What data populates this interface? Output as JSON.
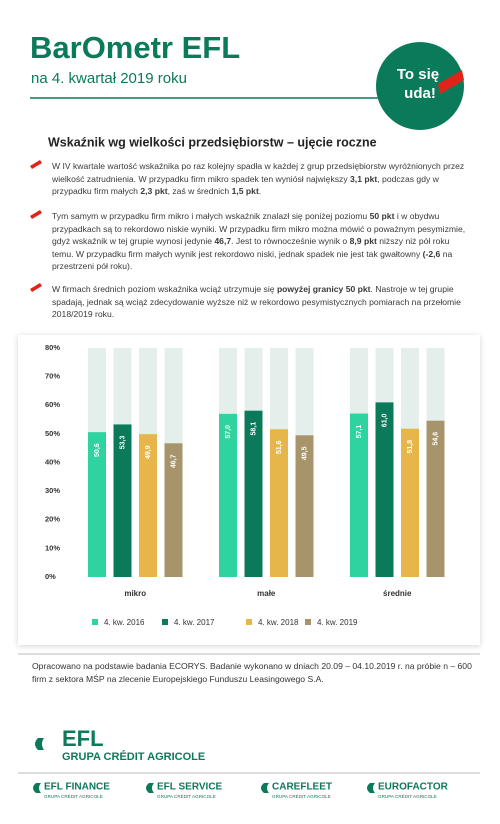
{
  "header": {
    "title": "BarOmetr EFL",
    "subtitle": "na 4. kwartał 2019 roku"
  },
  "badge": {
    "line1": "To się",
    "line2": "uda!"
  },
  "section_title": "Wskaźnik wg wielkości przedsiębiorstw – ujęcie roczne",
  "bullets": [
    [
      {
        "text": "W IV kwartale wartość wskaźnika po raz kolejny spadła w każdej z grup przedsiębiorstw wyróżnionych przez wielkość zatrudnienia. W przypadku firm mikro spadek ten wyniósł największy "
      },
      {
        "text": "3,1 pkt",
        "bold": true
      },
      {
        "text": ", podczas gdy w przypadku firm małych "
      },
      {
        "text": "2,3 pkt",
        "bold": true
      },
      {
        "text": ", zaś w średnich "
      },
      {
        "text": "1,5 pkt",
        "bold": true
      },
      {
        "text": "."
      }
    ],
    [
      {
        "text": "Tym samym w przypadku firm mikro i małych wskaźnik znalazł się poniżej poziomu "
      },
      {
        "text": "50 pkt",
        "bold": true
      },
      {
        "text": " i w obydwu przypadkach są to rekordowo niskie wyniki. W przypadku firm mikro można mówić o poważnym pesymizmie, gdyż wskaźnik w tej grupie wynosi jedynie "
      },
      {
        "text": "46,7",
        "bold": true
      },
      {
        "text": ". Jest to równocześnie wynik o "
      },
      {
        "text": "8,9 pkt",
        "bold": true
      },
      {
        "text": " niższy niż pół roku temu. W przypadku firm małych wynik jest rekordowo niski, jednak spadek nie jest tak gwałtowny "
      },
      {
        "text": "(-2,6",
        "bold": true
      },
      {
        "text": " na przestrzeni pół roku)."
      }
    ],
    [
      {
        "text": "W firmach średnich poziom wskaźnika wciąż utrzymuje się "
      },
      {
        "text": "powyżej granicy 50 pkt",
        "bold": true
      },
      {
        "text": ". Nastroje w tej grupie spadają, jednak są wciąż zdecydowanie wyższe niż w rekordowo pesymistycznych pomiarach na przełomie 2018/2019 roku."
      }
    ]
  ],
  "chart_data": {
    "type": "bar",
    "categories": [
      "mikro",
      "małe",
      "średnie"
    ],
    "series": [
      {
        "name": "4. kw. 2016",
        "color": "#2fd3a0",
        "values": [
          50.6,
          57.0,
          57.1
        ],
        "value_labels": [
          "50,6",
          "57,0",
          "57,1"
        ]
      },
      {
        "name": "4. kw. 2017",
        "color": "#0b7a5a",
        "values": [
          53.3,
          58.1,
          61.0
        ],
        "value_labels": [
          "53,3",
          "58,1",
          "61,0"
        ]
      },
      {
        "name": "4. kw. 2018",
        "color": "#e6b64a",
        "values": [
          49.9,
          51.6,
          51.8
        ],
        "value_labels": [
          "49,9",
          "51,6",
          "51,8"
        ]
      },
      {
        "name": "4. kw. 2019",
        "color": "#a8946a",
        "values": [
          46.7,
          49.5,
          54.6
        ],
        "value_labels": [
          "46,7",
          "49,5",
          "54,6"
        ]
      }
    ],
    "ylim": [
      0,
      80
    ],
    "yticks": [
      {
        "value": 0,
        "label": "0%"
      },
      {
        "value": 10,
        "label": "10%"
      },
      {
        "value": 20,
        "label": "20%"
      },
      {
        "value": 30,
        "label": "30%"
      },
      {
        "value": 40,
        "label": "40%"
      },
      {
        "value": 50,
        "label": "50%"
      },
      {
        "value": 60,
        "label": "60%"
      },
      {
        "value": 70,
        "label": "70%"
      },
      {
        "value": 80,
        "label": "80%"
      }
    ]
  },
  "footer": {
    "note": "Opracowano na podstawie badania ECORYS. Badanie wykonano w dniach 20.09 – 04.10.2019 r. na próbie n – 600 firm z sektora MŚP na zlecenie Europejskiego Funduszu Leasingowego S.A.",
    "logo": "EFL",
    "logo_sub": "GRUPA CRÉDIT AGRICOLE",
    "brands": [
      {
        "name": "EFL FINANCE",
        "sub": "GRUPA CRÉDIT AGRICOLE"
      },
      {
        "name": "EFL SERVICE",
        "sub": "GRUPA CRÉDIT AGRICOLE"
      },
      {
        "name": "CAREFLEET",
        "sub": "GRUPA CRÉDIT AGRICOLE"
      },
      {
        "name": "EUROFACTOR",
        "sub": "GRUPA CRÉDIT AGRICOLE"
      }
    ]
  }
}
